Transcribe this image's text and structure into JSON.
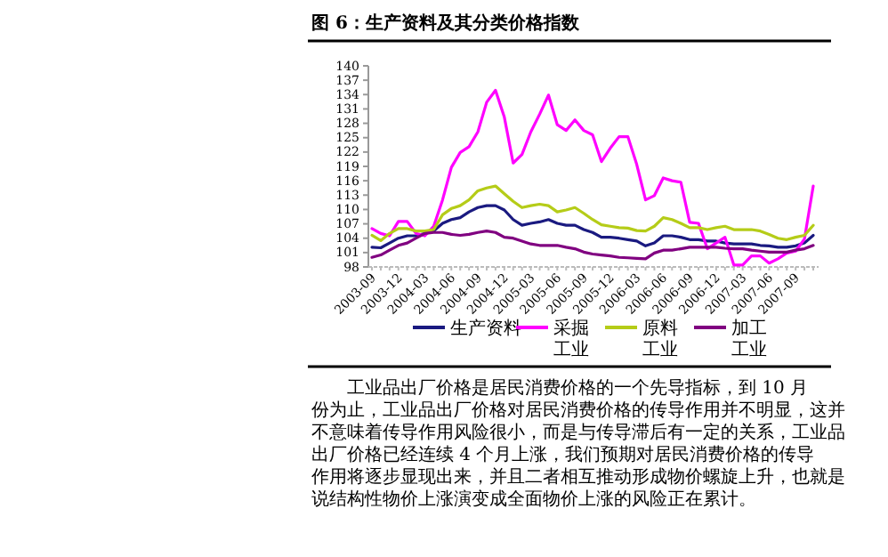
{
  "chart_data": {
    "type": "line",
    "title": "图 6：生产资料及其分类价格指数",
    "categories": [
      "2003-09",
      null,
      null,
      "2003-12",
      null,
      null,
      "2004-03",
      null,
      null,
      "2004-06",
      null,
      null,
      "2004-09",
      null,
      null,
      "2004-12",
      null,
      null,
      "2005-03",
      null,
      null,
      "2005-06",
      null,
      null,
      "2005-09",
      null,
      null,
      "2005-12",
      null,
      null,
      "2006-03",
      null,
      null,
      "2006-06",
      null,
      null,
      "2006-09",
      null,
      null,
      "2006-12",
      null,
      null,
      "2007-03",
      null,
      null,
      "2007-06",
      null,
      null,
      "2007-09",
      null,
      null
    ],
    "series": [
      {
        "name": "生产资料",
        "color": "#1a1a80",
        "values": [
          102.1,
          102,
          103,
          104,
          104.5,
          104.5,
          105,
          105.5,
          107.1,
          107.9,
          108.3,
          109.5,
          110.4,
          110.8,
          110.8,
          109.9,
          107.9,
          106.7,
          107.1,
          107.4,
          107.9,
          107.1,
          106.7,
          106.7,
          105.8,
          105.2,
          104.2,
          104.2,
          104,
          103.7,
          103.4,
          102.4,
          103,
          104.5,
          104.5,
          104.2,
          103.7,
          103.7,
          103.4,
          103.4,
          103,
          102.8,
          102.8,
          102.8,
          102.5,
          102.4,
          102.1,
          102.1,
          102.4,
          103,
          104.6
        ]
      },
      {
        "name": "采掘工业",
        "color": "#ff00ff",
        "values": [
          106,
          105,
          104.5,
          107.5,
          107.5,
          105,
          104.5,
          106.5,
          112,
          118.8,
          121.9,
          123.1,
          126.2,
          132.4,
          134.9,
          129.3,
          119.7,
          121.5,
          126.2,
          129.9,
          133.9,
          127.7,
          126.5,
          128.7,
          126.5,
          125.6,
          120,
          122.8,
          125.2,
          125.2,
          119.4,
          112,
          112.9,
          116.6,
          116,
          115.7,
          107.3,
          107.1,
          101.8,
          103,
          104.2,
          98.4,
          98.4,
          100.3,
          100.3,
          98.8,
          99.7,
          100.9,
          101.3,
          103.8,
          114.9
        ]
      },
      {
        "name": "原料工业",
        "color": "#b5cc18",
        "values": [
          104.6,
          103.5,
          105,
          106,
          106,
          105.5,
          105.5,
          105.8,
          108.9,
          110.2,
          110.8,
          112,
          113.9,
          114.5,
          114.9,
          113.3,
          111.7,
          110.4,
          110.8,
          111.1,
          110.8,
          109.5,
          109.9,
          110.4,
          109.2,
          107.9,
          106.8,
          106.5,
          106.2,
          106.1,
          105.6,
          105.5,
          106.5,
          108.3,
          107.9,
          107.1,
          106.2,
          106.2,
          105.8,
          106.2,
          106.5,
          105.8,
          105.8,
          105.8,
          105.5,
          104.8,
          104,
          103.7,
          104.2,
          104.6,
          106.7
        ]
      },
      {
        "name": "加工工业",
        "color": "#800080",
        "values": [
          100,
          100.5,
          101.5,
          102.5,
          103,
          104,
          105,
          105.2,
          105.2,
          104.8,
          104.6,
          104.8,
          105.2,
          105.5,
          105.2,
          104.2,
          104,
          103.4,
          102.8,
          102.5,
          102.5,
          102.5,
          102.1,
          101.8,
          101.1,
          100.7,
          100.5,
          100.3,
          100,
          99.9,
          99.8,
          99.7,
          100.9,
          101.5,
          101.5,
          101.8,
          102.1,
          102.1,
          102.1,
          102.1,
          101.9,
          101.8,
          101.8,
          101.5,
          101.3,
          101.1,
          101.1,
          101.1,
          101.5,
          101.8,
          102.5
        ]
      }
    ],
    "ylim": [
      98,
      140
    ],
    "yticks": [
      98,
      101,
      104,
      107,
      110,
      113,
      116,
      119,
      122,
      125,
      128,
      131,
      134,
      137,
      140
    ],
    "legend": "bottom",
    "annotations": [
      "工业品出厂价格是居民消费价格的一个先导指标，到 10 月份为止，工业品出厂价格对居民消费价格的传导作用并不明显，这并不意味着传导作用风险很小，而是与传导滞后有一定的关系，工业品出厂价格已经连续 4 个月上涨，我们预期对居民消费价格的传导作用将逐步显现出来，并且二者相互推动形成物价螺旋上升，也就是说结构性物价上涨演变成全面物价上涨的风险正在累计。"
    ]
  }
}
